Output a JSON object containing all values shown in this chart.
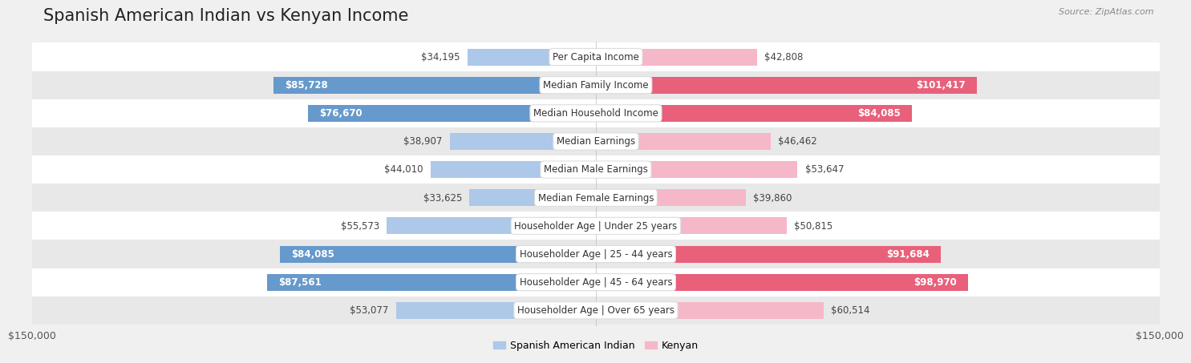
{
  "title": "Spanish American Indian vs Kenyan Income",
  "source": "Source: ZipAtlas.com",
  "categories": [
    "Per Capita Income",
    "Median Family Income",
    "Median Household Income",
    "Median Earnings",
    "Median Male Earnings",
    "Median Female Earnings",
    "Householder Age | Under 25 years",
    "Householder Age | 25 - 44 years",
    "Householder Age | 45 - 64 years",
    "Householder Age | Over 65 years"
  ],
  "left_values": [
    34195,
    85728,
    76670,
    38907,
    44010,
    33625,
    55573,
    84085,
    87561,
    53077
  ],
  "right_values": [
    42808,
    101417,
    84085,
    46462,
    53647,
    39860,
    50815,
    91684,
    98970,
    60514
  ],
  "left_labels": [
    "$34,195",
    "$85,728",
    "$76,670",
    "$38,907",
    "$44,010",
    "$33,625",
    "$55,573",
    "$84,085",
    "$87,561",
    "$53,077"
  ],
  "right_labels": [
    "$42,808",
    "$101,417",
    "$84,085",
    "$46,462",
    "$53,647",
    "$39,860",
    "$50,815",
    "$91,684",
    "$98,970",
    "$60,514"
  ],
  "left_color_light": "#adc8e8",
  "left_color_dark": "#6699cc",
  "right_color_light": "#f5b8c8",
  "right_color_dark": "#e8607a",
  "max_value": 150000,
  "legend_left": "Spanish American Indian",
  "legend_right": "Kenyan",
  "x_tick_left": "$150,000",
  "x_tick_right": "$150,000",
  "bg_color": "#f0f0f0",
  "row_even_bg": "#ffffff",
  "row_odd_bg": "#e8e8e8",
  "title_fontsize": 15,
  "label_fontsize": 8.5,
  "bar_height": 0.6,
  "large_threshold": 65000
}
